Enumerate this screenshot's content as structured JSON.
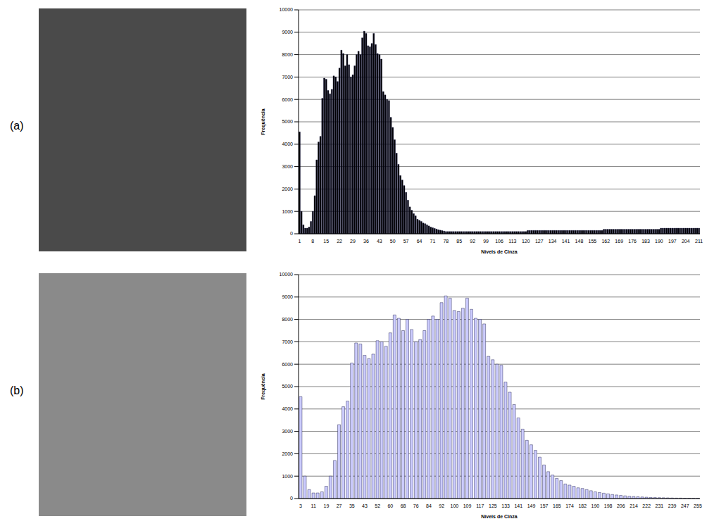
{
  "chart_data": [
    {
      "type": "bar",
      "panel_label": "(a)",
      "x_label": "Níveis de Cinza",
      "y_label": "Frequência",
      "color": "#000000",
      "grid": true,
      "ylim": [
        0,
        10000
      ],
      "yticks": [
        0,
        1000,
        2000,
        3000,
        4000,
        5000,
        6000,
        7000,
        8000,
        9000,
        10000
      ],
      "categories": [
        "1",
        null,
        null,
        null,
        null,
        null,
        null,
        "8",
        null,
        null,
        null,
        null,
        null,
        null,
        "15",
        null,
        null,
        null,
        null,
        null,
        null,
        "22",
        null,
        null,
        null,
        null,
        null,
        null,
        "29",
        null,
        null,
        null,
        null,
        null,
        null,
        "36",
        null,
        null,
        null,
        null,
        null,
        null,
        "43",
        null,
        null,
        null,
        null,
        null,
        null,
        "50",
        null,
        null,
        null,
        null,
        null,
        null,
        "57",
        null,
        null,
        null,
        null,
        null,
        null,
        "64",
        null,
        null,
        null,
        null,
        null,
        null,
        "71",
        null,
        null,
        null,
        null,
        null,
        null,
        "78",
        null,
        null,
        null,
        null,
        null,
        null,
        "85",
        null,
        null,
        null,
        null,
        null,
        null,
        "92",
        null,
        null,
        null,
        null,
        null,
        null,
        "99",
        null,
        null,
        null,
        null,
        null,
        null,
        "106",
        null,
        null,
        null,
        null,
        null,
        null,
        "113",
        null,
        null,
        null,
        null,
        null,
        null,
        "120",
        null,
        null,
        null,
        null,
        null,
        null,
        "127",
        null,
        null,
        null,
        null,
        null,
        null,
        "134",
        null,
        null,
        null,
        null,
        null,
        null,
        "141",
        null,
        null,
        null,
        null,
        null,
        null,
        "148",
        null,
        null,
        null,
        null,
        null,
        null,
        "155",
        null,
        null,
        null,
        null,
        null,
        null,
        "162",
        null,
        null,
        null,
        null,
        null,
        null,
        "169",
        null,
        null,
        null,
        null,
        null,
        null,
        "176",
        null,
        null,
        null,
        null,
        null,
        null,
        "183",
        null,
        null,
        null,
        null,
        null,
        null,
        "190",
        null,
        null,
        null,
        null,
        null,
        null,
        "197",
        null,
        null,
        null,
        null,
        null,
        null,
        "204",
        null,
        null,
        null,
        null,
        null,
        null,
        "211"
      ],
      "values": [
        4550,
        1000,
        400,
        250,
        250,
        300,
        550,
        1000,
        1700,
        3300,
        4100,
        4350,
        6050,
        6950,
        6900,
        6400,
        6250,
        6450,
        7050,
        7000,
        6800,
        7400,
        8200,
        8050,
        7500,
        8000,
        7550,
        7000,
        7100,
        7500,
        8000,
        8150,
        8000,
        8750,
        9050,
        8950,
        8400,
        8350,
        8500,
        8950,
        8450,
        8050,
        8000,
        7800,
        6350,
        6200,
        6000,
        5950,
        5200,
        4750,
        4200,
        3600,
        3100,
        2600,
        2400,
        2150,
        1850,
        1500,
        1200,
        1050,
        900,
        800,
        650,
        600,
        550,
        480,
        450,
        400,
        350,
        300,
        270,
        240,
        210,
        180,
        160,
        140,
        120,
        100,
        100,
        100,
        100,
        100,
        100,
        100,
        100,
        100,
        100,
        100,
        100,
        100,
        100,
        100,
        100,
        100,
        100,
        100,
        100,
        100,
        100,
        100,
        100,
        100,
        100,
        100,
        100,
        100,
        100,
        100,
        100,
        100,
        100,
        100,
        100,
        100,
        100,
        100,
        100,
        100,
        100,
        100,
        150,
        150,
        150,
        150,
        150,
        150,
        150,
        150,
        150,
        150,
        150,
        150,
        150,
        150,
        150,
        150,
        150,
        150,
        150,
        150,
        150,
        150,
        150,
        150,
        150,
        150,
        150,
        150,
        150,
        150,
        150,
        150,
        150,
        150,
        150,
        150,
        150,
        150,
        150,
        150,
        200,
        200,
        200,
        200,
        200,
        200,
        200,
        200,
        200,
        200,
        200,
        200,
        200,
        200,
        200,
        200,
        200,
        200,
        200,
        200,
        200,
        200,
        200,
        200,
        200,
        200,
        200,
        200,
        200,
        200,
        250,
        250,
        250,
        250,
        250,
        250,
        250,
        250,
        250,
        250,
        250,
        250,
        250,
        250,
        250,
        250,
        250,
        250,
        250,
        250,
        250
      ]
    },
    {
      "type": "bar",
      "panel_label": "(b)",
      "x_label": "Níveis de Cinza",
      "y_label": "Frequência",
      "color": "#ccccff",
      "grid": true,
      "ylim": [
        0,
        10000
      ],
      "yticks": [
        0,
        1000,
        2000,
        3000,
        4000,
        5000,
        6000,
        7000,
        8000,
        9000,
        10000
      ],
      "categories": [
        "3",
        null,
        null,
        "11",
        null,
        null,
        "19",
        null,
        null,
        "27",
        null,
        null,
        "35",
        null,
        null,
        "43",
        null,
        null,
        "52",
        null,
        null,
        "60",
        null,
        null,
        "68",
        null,
        null,
        "76",
        null,
        null,
        "84",
        null,
        null,
        "92",
        null,
        null,
        "100",
        null,
        null,
        "109",
        null,
        null,
        "117",
        null,
        null,
        "125",
        null,
        null,
        "133",
        null,
        null,
        "141",
        null,
        null,
        "149",
        null,
        null,
        "157",
        null,
        null,
        "165",
        null,
        null,
        "174",
        null,
        null,
        "182",
        null,
        null,
        "190",
        null,
        null,
        "198",
        null,
        null,
        "206",
        null,
        null,
        "214",
        null,
        null,
        "222",
        null,
        null,
        "231",
        null,
        null,
        "239",
        null,
        null,
        "247",
        null,
        null,
        "255"
      ],
      "values": [
        4550,
        1000,
        400,
        250,
        250,
        300,
        550,
        1000,
        1700,
        3300,
        4100,
        4350,
        6050,
        6950,
        6900,
        6400,
        6250,
        6450,
        7050,
        7000,
        6800,
        7400,
        8200,
        8050,
        7500,
        8000,
        7550,
        7000,
        7100,
        7500,
        8000,
        8150,
        8000,
        8750,
        9050,
        8950,
        8400,
        8350,
        8500,
        8950,
        8450,
        8050,
        8000,
        7800,
        6350,
        6200,
        6000,
        5950,
        5200,
        4750,
        4200,
        3600,
        3100,
        2600,
        2400,
        2150,
        1850,
        1500,
        1200,
        1050,
        900,
        800,
        650,
        600,
        550,
        480,
        450,
        400,
        350,
        300,
        270,
        240,
        210,
        180,
        160,
        140,
        120,
        100,
        90,
        80,
        70,
        60,
        50,
        45,
        40,
        35,
        30,
        25,
        20,
        20,
        15,
        15,
        10,
        10
      ]
    }
  ]
}
